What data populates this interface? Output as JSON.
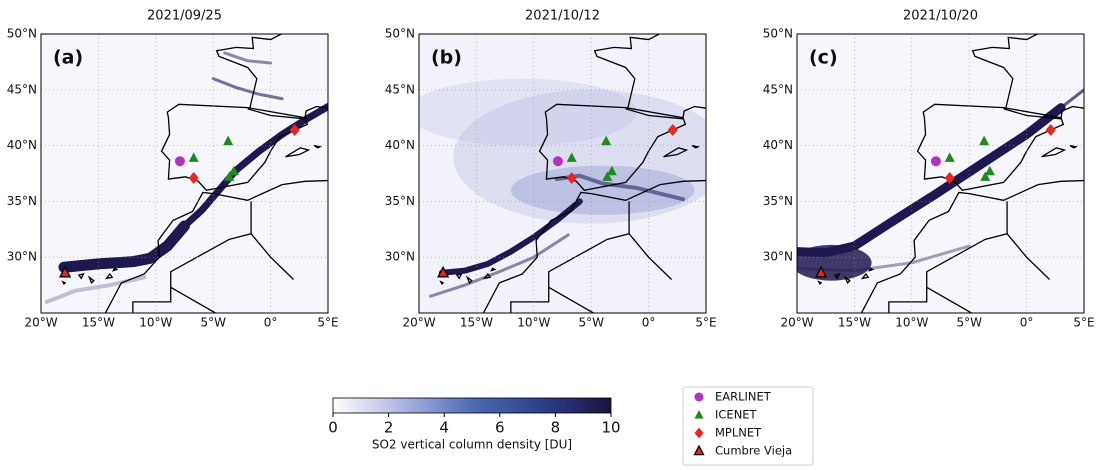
{
  "figure": {
    "panels": [
      {
        "title": "2021/09/25",
        "label": "(a)"
      },
      {
        "title": "2021/10/12",
        "label": "(b)"
      },
      {
        "title": "2021/10/20",
        "label": "(c)"
      }
    ],
    "xlim": [
      -20,
      5
    ],
    "ylim": [
      25,
      50
    ],
    "xticks": [
      {
        "value": -20,
        "label": "20°W"
      },
      {
        "value": -15,
        "label": "15°W"
      },
      {
        "value": -10,
        "label": "10°W"
      },
      {
        "value": -5,
        "label": "5°W"
      },
      {
        "value": 0,
        "label": "0°"
      },
      {
        "value": 5,
        "label": "5°E"
      }
    ],
    "yticks": [
      {
        "value": 30,
        "label": "30°N"
      },
      {
        "value": 35,
        "label": "35°N"
      },
      {
        "value": 40,
        "label": "40°N"
      },
      {
        "value": 45,
        "label": "45°N"
      },
      {
        "value": 50,
        "label": "50°N"
      }
    ],
    "grid": true,
    "series": [
      {
        "name": "EARLINET",
        "color": "#b52fc4",
        "marker": "circle",
        "lon": [
          -7.9
        ],
        "lat": [
          38.6
        ]
      },
      {
        "name": "ICENET",
        "color": "#1e8a1e",
        "marker": "triangle",
        "lon": [
          -6.7,
          -3.7,
          -3.6,
          -3.2
        ],
        "lat": [
          38.9,
          40.4,
          37.2,
          37.7
        ]
      },
      {
        "name": "MPLNET",
        "color": "#e8251f",
        "marker": "diamond",
        "lon": [
          2.1,
          -6.7
        ],
        "lat": [
          41.4,
          37.1
        ]
      },
      {
        "name": "Cumbre Vieja",
        "color": "#e8251f",
        "marker": "triangle-edge",
        "lon": [
          -17.9
        ],
        "lat": [
          28.6
        ]
      }
    ],
    "colorbar": {
      "label": "SO2 vertical column density [DU]",
      "lim": [
        0,
        10
      ],
      "ticks": [
        0,
        2,
        4,
        6,
        8,
        10
      ],
      "colors": [
        "#ffffff",
        "#aeb4e0",
        "#4d6bb3",
        "#2e3f8a",
        "#1a1240"
      ]
    }
  }
}
